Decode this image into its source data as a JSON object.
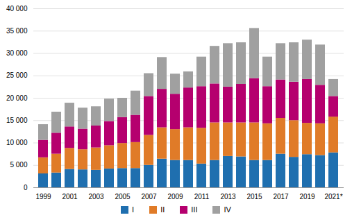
{
  "chart_data": {
    "type": "bar",
    "stacked": true,
    "categories": [
      "1999",
      null,
      "2001",
      null,
      "2003",
      null,
      "2005",
      null,
      "2007",
      null,
      "2009",
      null,
      "2011",
      null,
      "2013",
      null,
      "2015",
      null,
      "2017",
      null,
      "2019",
      null,
      "2021*"
    ],
    "series": [
      {
        "name": "I",
        "color": "#1f6faf",
        "values": [
          3100,
          3300,
          4100,
          4000,
          3900,
          4200,
          4300,
          4300,
          5000,
          6400,
          6100,
          6100,
          5300,
          6100,
          7000,
          6900,
          6100,
          6100,
          7500,
          6800,
          7400,
          7200,
          7800
        ]
      },
      {
        "name": "II",
        "color": "#e07b28",
        "values": [
          3600,
          4200,
          4700,
          4500,
          5000,
          5200,
          5600,
          5800,
          6700,
          7000,
          6900,
          7300,
          8000,
          8400,
          7500,
          7600,
          8400,
          8200,
          8000,
          8200,
          7000,
          7100,
          8000
        ]
      },
      {
        "name": "III",
        "color": "#b5006e",
        "values": [
          3900,
          4700,
          4800,
          4600,
          4900,
          5400,
          5800,
          6100,
          8700,
          8600,
          7900,
          8900,
          9300,
          8700,
          8000,
          8600,
          9900,
          8300,
          8600,
          8600,
          9800,
          8600,
          4600
        ]
      },
      {
        "name": "IV",
        "color": "#a0a0a0",
        "values": [
          3500,
          4700,
          5300,
          4700,
          4300,
          5000,
          4300,
          5400,
          5100,
          7100,
          4500,
          3600,
          6600,
          8400,
          9700,
          9300,
          11200,
          6600,
          8100,
          8800,
          8800,
          9000,
          3800
        ]
      }
    ],
    "ylim": [
      0,
      40000
    ],
    "yticks": [
      0,
      {
        "value": 5000,
        "label": "5 000"
      },
      {
        "value": 10000,
        "label": "10 000"
      },
      {
        "value": 15000,
        "label": "15 000"
      },
      {
        "value": 20000,
        "label": "20 000"
      },
      {
        "value": 25000,
        "label": "25 000"
      },
      {
        "value": 30000,
        "label": "30 000"
      },
      {
        "value": 35000,
        "label": "35 000"
      },
      {
        "value": 40000,
        "label": "40 000"
      }
    ],
    "grid": true,
    "legend": "bottom"
  }
}
